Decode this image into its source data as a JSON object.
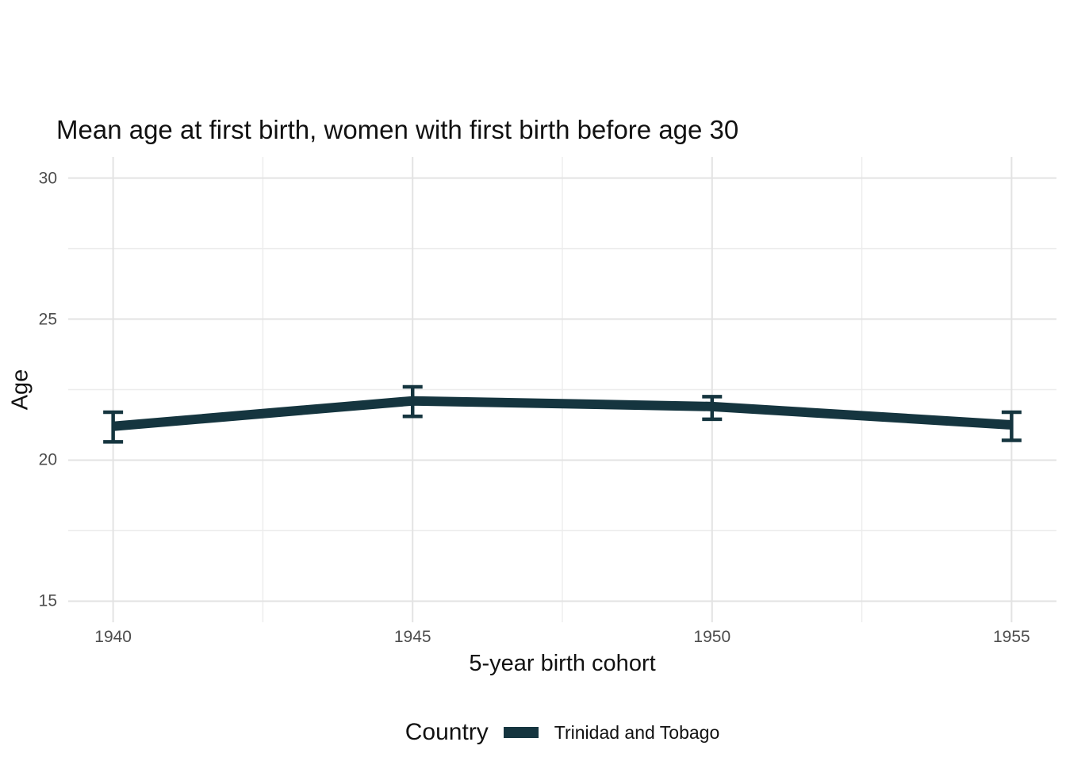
{
  "title": "Mean age at first birth, women with first birth before age 30",
  "x_axis": {
    "label": "5-year birth cohort"
  },
  "y_axis": {
    "label": "Age"
  },
  "legend": {
    "title": "Country",
    "items": [
      {
        "label": "Trinidad and Tobago",
        "color": "#15353F"
      }
    ]
  },
  "chart_data": {
    "type": "line",
    "title": "Mean age at first birth, women with first birth before age 30",
    "xlabel": "5-year birth cohort",
    "ylabel": "Age",
    "x": [
      1940,
      1945,
      1950,
      1955
    ],
    "series": [
      {
        "name": "Trinidad and Tobago",
        "color": "#15353F",
        "y": [
          21.2,
          22.1,
          21.9,
          21.25
        ],
        "ci_low": [
          20.65,
          21.55,
          21.45,
          20.7
        ],
        "ci_high": [
          21.7,
          22.6,
          22.25,
          21.7
        ]
      }
    ],
    "xlim": [
      1939.25,
      1955.75
    ],
    "ylim": [
      14.25,
      30.75
    ],
    "x_ticks": [
      1940,
      1945,
      1950,
      1955
    ],
    "y_ticks": [
      15,
      20,
      25,
      30
    ],
    "x_minor_ticks": [
      1942.5,
      1947.5,
      1952.5
    ],
    "y_minor_ticks": [
      17.5,
      22.5,
      27.5
    ],
    "grid": true,
    "error_bars": true,
    "legend_position": "bottom",
    "grid_major_color": "#E3E3E3",
    "grid_minor_color": "#ECECEC"
  }
}
